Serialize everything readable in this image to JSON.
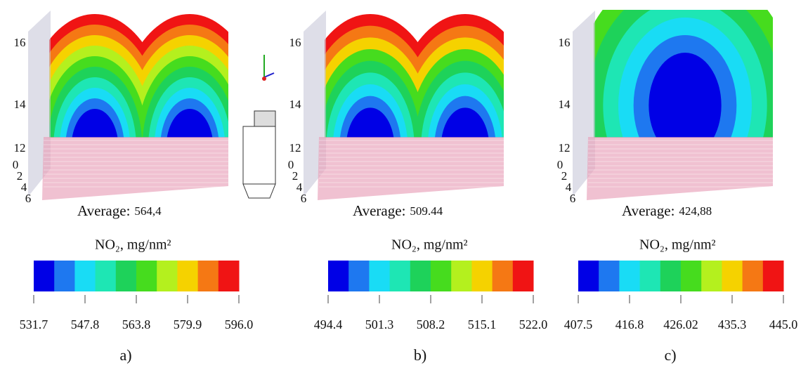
{
  "panels": [
    {
      "label": "a)",
      "average_label": "Average:",
      "average": "564,4",
      "unit": "NO₂, mg/nm²",
      "colorbar_ticks": [
        "531.7",
        "547.8",
        "563.8",
        "579.9",
        "596.0"
      ],
      "vertical_ticks": [
        "16",
        "14",
        "12"
      ],
      "depth_ticks": [
        "0",
        "2",
        "4",
        "6"
      ]
    },
    {
      "label": "b)",
      "average_label": "Average:",
      "average": "509.44",
      "unit": "NO₂, mg/nm²",
      "colorbar_ticks": [
        "494.4",
        "501.3",
        "508.2",
        "515.1",
        "522.0"
      ],
      "vertical_ticks": [
        "16",
        "14",
        "12"
      ],
      "depth_ticks": [
        "0",
        "2",
        "4",
        "6"
      ]
    },
    {
      "label": "c)",
      "average_label": "Average:",
      "average": "424,88",
      "unit": "NO₂, mg/nm²",
      "colorbar_ticks": [
        "407.5",
        "416.8",
        "426.02",
        "435.3",
        "445.0"
      ],
      "vertical_ticks": [
        "16",
        "14",
        "12"
      ],
      "depth_ticks": [
        "0",
        "2",
        "4",
        "6"
      ]
    }
  ]
}
